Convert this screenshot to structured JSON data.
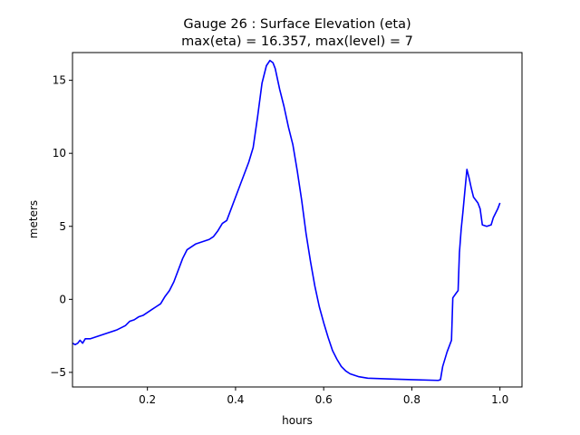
{
  "chart_data": {
    "type": "line",
    "title_line1": "Gauge 26 : Surface Elevation (eta)",
    "title_line2": "max(eta) =  16.357,    max(level) = 7",
    "xlabel": "hours",
    "ylabel": "meters",
    "xlim": [
      0.03,
      1.05
    ],
    "ylim": [
      -6.0,
      16.9
    ],
    "x_ticks": [
      0.2,
      0.4,
      0.6,
      0.8,
      1.0
    ],
    "x_tick_labels": [
      "0.2",
      "0.4",
      "0.6",
      "0.8",
      "1.0"
    ],
    "y_ticks": [
      -5,
      0,
      5,
      10,
      15
    ],
    "y_tick_labels": [
      "−5",
      "0",
      "5",
      "10",
      "15"
    ],
    "series": [
      {
        "name": "eta",
        "color": "#0000ff",
        "points": [
          [
            0.03,
            -3.0
          ],
          [
            0.036,
            -3.1
          ],
          [
            0.042,
            -3.0
          ],
          [
            0.047,
            -2.8
          ],
          [
            0.053,
            -3.0
          ],
          [
            0.059,
            -2.7
          ],
          [
            0.07,
            -2.7
          ],
          [
            0.09,
            -2.5
          ],
          [
            0.11,
            -2.3
          ],
          [
            0.13,
            -2.1
          ],
          [
            0.15,
            -1.8
          ],
          [
            0.16,
            -1.5
          ],
          [
            0.17,
            -1.4
          ],
          [
            0.18,
            -1.2
          ],
          [
            0.19,
            -1.1
          ],
          [
            0.2,
            -0.9
          ],
          [
            0.21,
            -0.7
          ],
          [
            0.22,
            -0.5
          ],
          [
            0.23,
            -0.3
          ],
          [
            0.24,
            0.2
          ],
          [
            0.25,
            0.6
          ],
          [
            0.26,
            1.2
          ],
          [
            0.27,
            2.0
          ],
          [
            0.28,
            2.8
          ],
          [
            0.29,
            3.4
          ],
          [
            0.3,
            3.6
          ],
          [
            0.31,
            3.8
          ],
          [
            0.32,
            3.9
          ],
          [
            0.33,
            4.0
          ],
          [
            0.34,
            4.1
          ],
          [
            0.35,
            4.3
          ],
          [
            0.36,
            4.7
          ],
          [
            0.37,
            5.2
          ],
          [
            0.38,
            5.4
          ],
          [
            0.39,
            6.2
          ],
          [
            0.4,
            7.0
          ],
          [
            0.41,
            7.8
          ],
          [
            0.42,
            8.6
          ],
          [
            0.43,
            9.4
          ],
          [
            0.44,
            10.4
          ],
          [
            0.45,
            12.5
          ],
          [
            0.46,
            14.8
          ],
          [
            0.47,
            16.0
          ],
          [
            0.478,
            16.357
          ],
          [
            0.485,
            16.2
          ],
          [
            0.49,
            15.8
          ],
          [
            0.5,
            14.4
          ],
          [
            0.51,
            13.2
          ],
          [
            0.52,
            11.8
          ],
          [
            0.53,
            10.6
          ],
          [
            0.54,
            8.8
          ],
          [
            0.55,
            6.8
          ],
          [
            0.56,
            4.5
          ],
          [
            0.57,
            2.6
          ],
          [
            0.58,
            0.9
          ],
          [
            0.59,
            -0.5
          ],
          [
            0.6,
            -1.6
          ],
          [
            0.61,
            -2.6
          ],
          [
            0.62,
            -3.5
          ],
          [
            0.63,
            -4.1
          ],
          [
            0.64,
            -4.6
          ],
          [
            0.65,
            -4.9
          ],
          [
            0.66,
            -5.1
          ],
          [
            0.68,
            -5.3
          ],
          [
            0.7,
            -5.4
          ],
          [
            0.75,
            -5.45
          ],
          [
            0.8,
            -5.5
          ],
          [
            0.86,
            -5.55
          ],
          [
            0.865,
            -5.5
          ],
          [
            0.87,
            -4.6
          ],
          [
            0.88,
            -3.6
          ],
          [
            0.89,
            -2.8
          ],
          [
            0.893,
            0.1
          ],
          [
            0.9,
            0.4
          ],
          [
            0.905,
            0.6
          ],
          [
            0.908,
            3.2
          ],
          [
            0.912,
            4.8
          ],
          [
            0.916,
            6.0
          ],
          [
            0.92,
            7.3
          ],
          [
            0.925,
            8.9
          ],
          [
            0.93,
            8.3
          ],
          [
            0.935,
            7.6
          ],
          [
            0.94,
            7.0
          ],
          [
            0.95,
            6.6
          ],
          [
            0.955,
            6.2
          ],
          [
            0.96,
            5.1
          ],
          [
            0.97,
            5.0
          ],
          [
            0.98,
            5.1
          ],
          [
            0.985,
            5.6
          ],
          [
            0.99,
            5.9
          ],
          [
            0.995,
            6.2
          ],
          [
            1.0,
            6.6
          ]
        ]
      }
    ]
  }
}
